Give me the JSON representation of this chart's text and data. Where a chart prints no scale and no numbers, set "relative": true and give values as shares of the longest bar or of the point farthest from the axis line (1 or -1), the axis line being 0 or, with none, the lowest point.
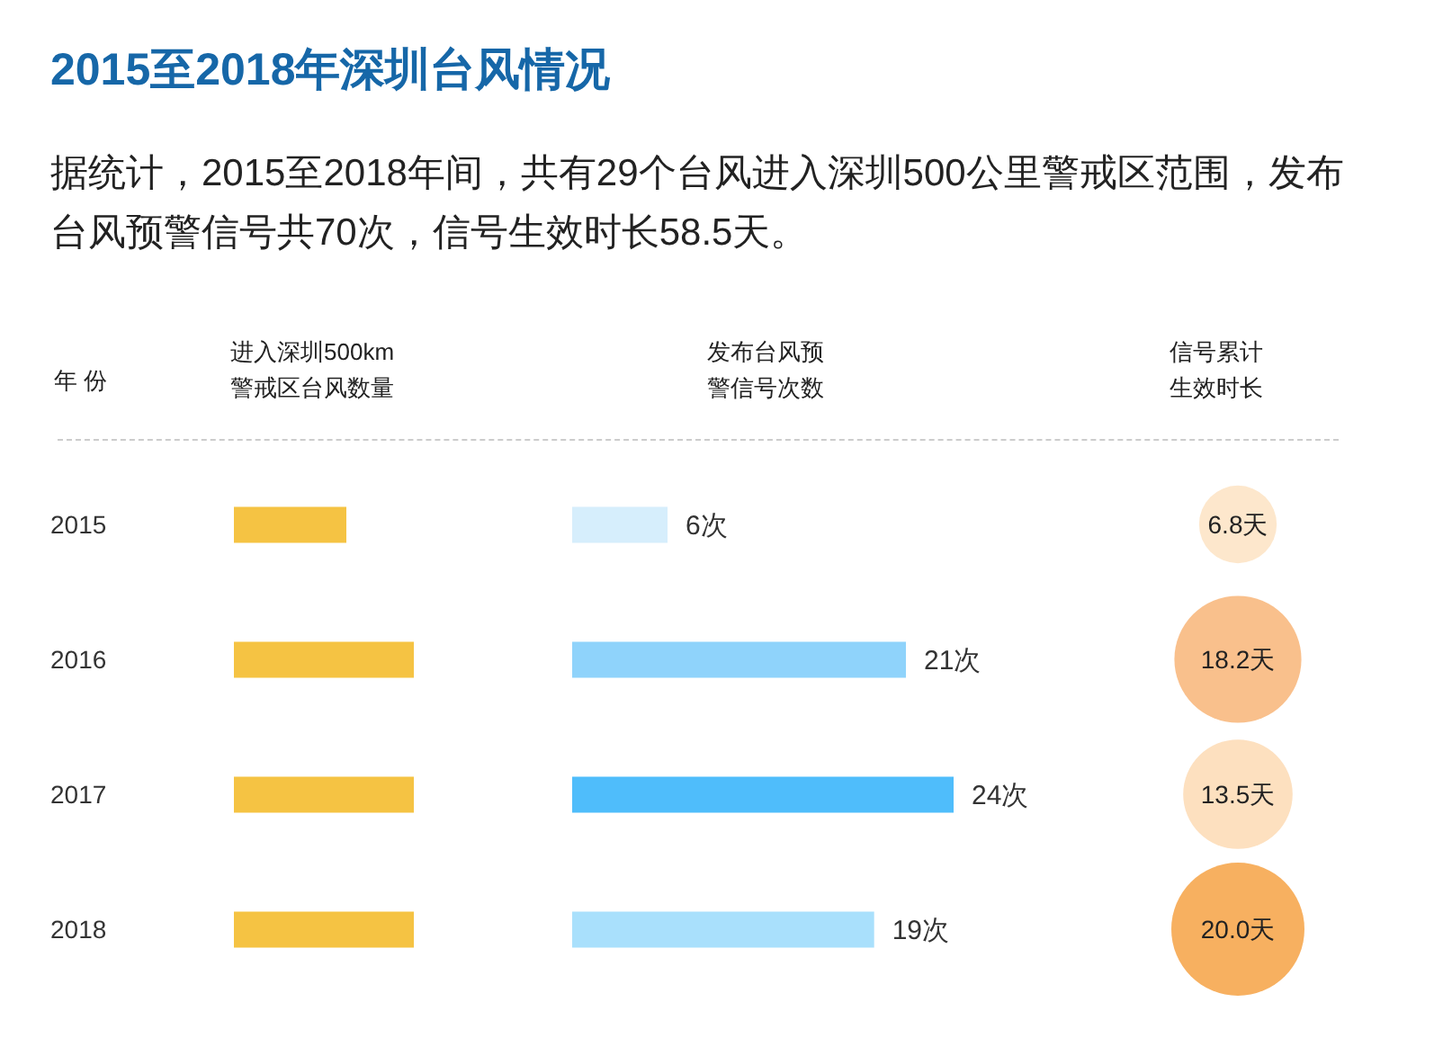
{
  "chart_data": [
    {
      "type": "bar",
      "orientation": "horizontal",
      "relative": true,
      "title": "2015至2018年深圳台风情况",
      "subtitle": "据统计，2015至2018年间，共有29个台风进入深圳500公里警戒区范围，发布台风预警信号共70次，信号生效时长58.5天。",
      "ylabel": "年 份",
      "xlabel": "进入深圳500km警戒区台风数量",
      "categories": [
        "2015",
        "2016",
        "2017",
        "2018"
      ],
      "values": [
        0.625,
        1,
        1,
        1
      ],
      "color": "#f5c343"
    },
    {
      "type": "bar",
      "orientation": "horizontal",
      "xlabel": "发布台风预警信号次数",
      "categories": [
        null,
        null,
        null,
        null
      ],
      "values": [
        6,
        21,
        24,
        19
      ],
      "colors": [
        "#d6eefc",
        "#8fd3fb",
        "#4fbdfb",
        "#a9e0fc"
      ],
      "value_labels": [
        "6次",
        "21次",
        "24次",
        "19次"
      ],
      "tick_labels": false
    },
    {
      "type": "other",
      "xlabel": "信号累计生效时长",
      "categories": [
        null,
        null,
        null,
        null
      ],
      "values": [
        6.8,
        18.2,
        13.5,
        20.0
      ],
      "colors": [
        "#fde7cc",
        "#f9c08c",
        "#fde0bf",
        "#f7b060"
      ],
      "value_labels": [
        "6.8天",
        "18.2天",
        "13.5天",
        "20.0天"
      ]
    }
  ]
}
